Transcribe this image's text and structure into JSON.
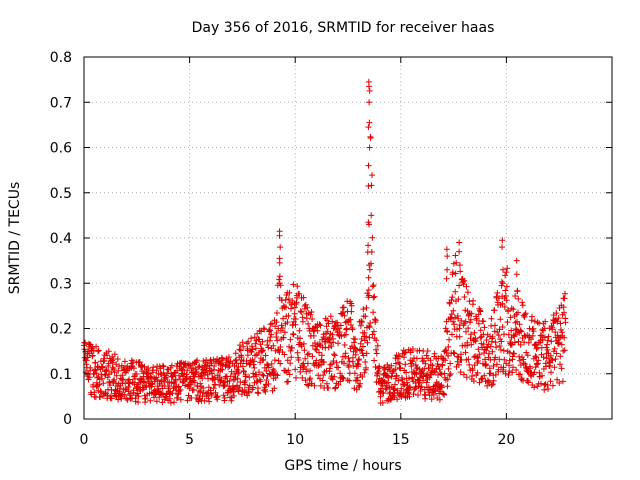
{
  "chart_data": {
    "type": "scatter",
    "title": "Day 356 of 2016, SRMTID for receiver haas",
    "xlabel": "GPS time / hours",
    "ylabel": "SRMTID / TECUs",
    "xlim": [
      0,
      25
    ],
    "ylim": [
      0,
      0.8
    ],
    "x_ticks": [
      0,
      5,
      10,
      15,
      20
    ],
    "x_tick_labels": [
      "0",
      "5",
      "10",
      "15",
      "20"
    ],
    "y_ticks": [
      0,
      0.1,
      0.2,
      0.3,
      0.4,
      0.5,
      0.6,
      0.7,
      0.8
    ],
    "y_tick_labels": [
      "0",
      "0.1",
      "0.2",
      "0.3",
      "0.4",
      "0.5",
      "0.6",
      "0.7",
      "0.8"
    ],
    "grid": true,
    "marker": "+",
    "series_color": "#e00000",
    "trend": {
      "x": [
        0,
        1,
        2,
        3,
        4,
        5,
        6,
        7,
        7.5,
        8,
        9,
        9.3,
        9.6,
        10,
        11,
        12,
        12.5,
        13,
        13.4,
        13.6,
        13.8,
        14,
        14.5,
        15,
        16,
        17,
        17.5,
        18,
        19,
        20,
        21,
        22,
        22.8
      ],
      "y": [
        0.11,
        0.1,
        0.085,
        0.08,
        0.075,
        0.085,
        0.085,
        0.09,
        0.11,
        0.12,
        0.14,
        0.25,
        0.18,
        0.2,
        0.14,
        0.15,
        0.18,
        0.13,
        0.2,
        0.45,
        0.15,
        0.07,
        0.08,
        0.1,
        0.1,
        0.09,
        0.25,
        0.2,
        0.14,
        0.22,
        0.15,
        0.14,
        0.18
      ]
    },
    "spikes": [
      {
        "x": 9.25,
        "y": [
          0.415,
          0.405,
          0.38,
          0.355,
          0.345,
          0.3
        ]
      },
      {
        "x": 13.5,
        "y": [
          0.745,
          0.735,
          0.725,
          0.7,
          0.655,
          0.645,
          0.6,
          0.56,
          0.515,
          0.435,
          0.43,
          0.34,
          0.285
        ]
      },
      {
        "x": 17.2,
        "y": [
          0.375,
          0.36,
          0.33,
          0.31
        ]
      },
      {
        "x": 17.8,
        "y": [
          0.39,
          0.37,
          0.34
        ]
      },
      {
        "x": 19.8,
        "y": [
          0.395,
          0.38,
          0.33,
          0.3
        ]
      },
      {
        "x": 20.5,
        "y": [
          0.35,
          0.32
        ]
      }
    ],
    "samples_per_hour": 80
  }
}
